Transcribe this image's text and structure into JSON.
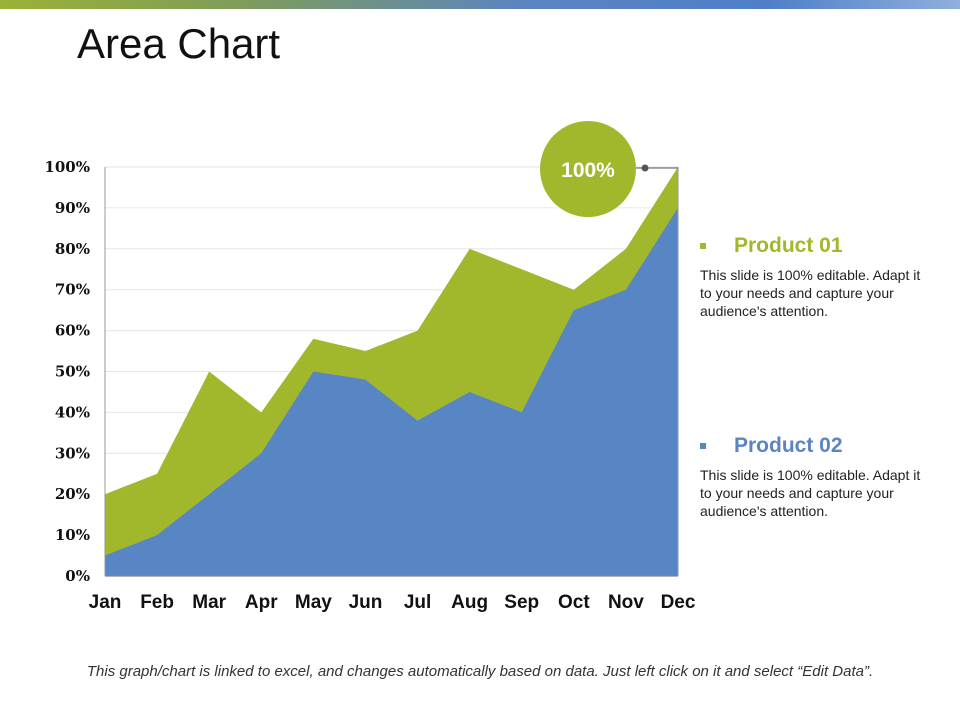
{
  "slide": {
    "title": "Area Chart",
    "footer": "This graph/chart is linked to excel, and changes automatically based on data. Just left click on it and select “Edit Data”."
  },
  "callout": {
    "label": "100%",
    "color": "#a2b82c"
  },
  "legend": [
    {
      "name": "Product 01",
      "color": "#a2b82c",
      "description": "This slide is 100% editable. Adapt it to your needs and capture your audience's attention."
    },
    {
      "name": "Product 02",
      "color": "#5b84c2",
      "description": "This slide is 100% editable. Adapt it to your needs and capture your audience's attention."
    }
  ],
  "chart_data": {
    "type": "area",
    "title": "",
    "xlabel": "",
    "ylabel": "",
    "categories": [
      "Jan",
      "Feb",
      "Mar",
      "Apr",
      "May",
      "Jun",
      "Jul",
      "Aug",
      "Sep",
      "Oct",
      "Nov",
      "Dec"
    ],
    "y_ticks": [
      "0%",
      "10%",
      "20%",
      "30%",
      "40%",
      "50%",
      "60%",
      "70%",
      "80%",
      "90%",
      "100%"
    ],
    "ylim": [
      0,
      100
    ],
    "grid": true,
    "series": [
      {
        "name": "Product 01",
        "color": "#a2b82c",
        "values": [
          20,
          25,
          50,
          40,
          58,
          55,
          60,
          80,
          75,
          70,
          80,
          100
        ]
      },
      {
        "name": "Product 02",
        "color": "#5885c3",
        "values": [
          5,
          10,
          20,
          30,
          50,
          48,
          38,
          45,
          40,
          65,
          70,
          90
        ]
      }
    ]
  }
}
